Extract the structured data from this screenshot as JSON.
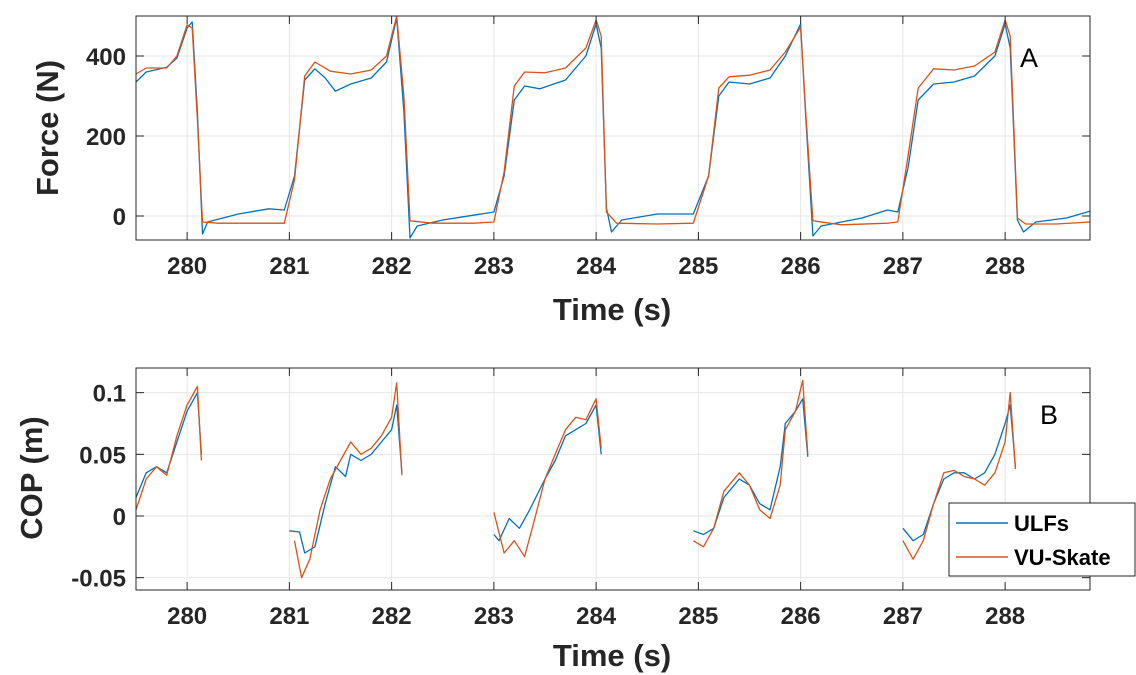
{
  "chart_data": [
    {
      "type": "line",
      "panel_label": "A",
      "title": "",
      "xlabel": "Time (s)",
      "ylabel": "Force (N)",
      "xlim": [
        279.5,
        288.83
      ],
      "ylim": [
        -60,
        500
      ],
      "xticks": [
        280,
        281,
        282,
        283,
        284,
        285,
        286,
        287,
        288
      ],
      "yticks": [
        0,
        200,
        400
      ],
      "grid": true,
      "series": [
        {
          "name": "ULFs",
          "color": "#0072BD",
          "points": [
            [
              279.5,
              335
            ],
            [
              279.6,
              360
            ],
            [
              279.8,
              372
            ],
            [
              279.9,
              395
            ],
            [
              280.0,
              470
            ],
            [
              280.05,
              485
            ],
            [
              280.1,
              260
            ],
            [
              280.15,
              -45
            ],
            [
              280.2,
              -15
            ],
            [
              280.5,
              5
            ],
            [
              280.8,
              18
            ],
            [
              280.95,
              15
            ],
            [
              281.05,
              100
            ],
            [
              281.15,
              340
            ],
            [
              281.25,
              368
            ],
            [
              281.35,
              345
            ],
            [
              281.45,
              312
            ],
            [
              281.6,
              330
            ],
            [
              281.8,
              345
            ],
            [
              281.95,
              385
            ],
            [
              282.05,
              495
            ],
            [
              282.12,
              260
            ],
            [
              282.18,
              -55
            ],
            [
              282.25,
              -25
            ],
            [
              282.5,
              -10
            ],
            [
              282.8,
              2
            ],
            [
              283.0,
              10
            ],
            [
              283.1,
              100
            ],
            [
              283.2,
              290
            ],
            [
              283.3,
              325
            ],
            [
              283.45,
              318
            ],
            [
              283.7,
              340
            ],
            [
              283.9,
              400
            ],
            [
              284.0,
              480
            ],
            [
              284.05,
              420
            ],
            [
              284.1,
              20
            ],
            [
              284.15,
              -40
            ],
            [
              284.25,
              -10
            ],
            [
              284.6,
              5
            ],
            [
              284.95,
              5
            ],
            [
              285.1,
              100
            ],
            [
              285.2,
              300
            ],
            [
              285.3,
              335
            ],
            [
              285.5,
              330
            ],
            [
              285.7,
              345
            ],
            [
              285.85,
              400
            ],
            [
              286.0,
              480
            ],
            [
              286.05,
              250
            ],
            [
              286.12,
              -50
            ],
            [
              286.2,
              -25
            ],
            [
              286.6,
              -5
            ],
            [
              286.85,
              15
            ],
            [
              286.95,
              10
            ],
            [
              287.05,
              120
            ],
            [
              287.15,
              290
            ],
            [
              287.3,
              330
            ],
            [
              287.5,
              335
            ],
            [
              287.7,
              350
            ],
            [
              287.9,
              400
            ],
            [
              288.0,
              480
            ],
            [
              288.05,
              420
            ],
            [
              288.12,
              -10
            ],
            [
              288.18,
              -40
            ],
            [
              288.3,
              -15
            ],
            [
              288.6,
              -5
            ],
            [
              288.83,
              12
            ]
          ]
        },
        {
          "name": "VU-Skate",
          "color": "#D95319",
          "points": [
            [
              279.5,
              355
            ],
            [
              279.6,
              370
            ],
            [
              279.8,
              370
            ],
            [
              279.9,
              400
            ],
            [
              280.0,
              478
            ],
            [
              280.05,
              470
            ],
            [
              280.1,
              240
            ],
            [
              280.15,
              -15
            ],
            [
              280.3,
              -18
            ],
            [
              280.7,
              -18
            ],
            [
              280.95,
              -18
            ],
            [
              281.05,
              90
            ],
            [
              281.15,
              350
            ],
            [
              281.25,
              385
            ],
            [
              281.4,
              362
            ],
            [
              281.6,
              355
            ],
            [
              281.8,
              365
            ],
            [
              281.95,
              400
            ],
            [
              282.05,
              500
            ],
            [
              282.12,
              300
            ],
            [
              282.18,
              -12
            ],
            [
              282.4,
              -18
            ],
            [
              282.8,
              -18
            ],
            [
              283.0,
              -15
            ],
            [
              283.1,
              110
            ],
            [
              283.2,
              325
            ],
            [
              283.3,
              360
            ],
            [
              283.5,
              358
            ],
            [
              283.7,
              370
            ],
            [
              283.9,
              420
            ],
            [
              284.0,
              490
            ],
            [
              284.05,
              450
            ],
            [
              284.1,
              10
            ],
            [
              284.2,
              -18
            ],
            [
              284.6,
              -20
            ],
            [
              284.95,
              -18
            ],
            [
              285.1,
              100
            ],
            [
              285.2,
              320
            ],
            [
              285.3,
              348
            ],
            [
              285.5,
              352
            ],
            [
              285.7,
              365
            ],
            [
              285.85,
              410
            ],
            [
              286.0,
              472
            ],
            [
              286.05,
              260
            ],
            [
              286.12,
              -12
            ],
            [
              286.4,
              -22
            ],
            [
              286.85,
              -18
            ],
            [
              286.95,
              -15
            ],
            [
              287.05,
              150
            ],
            [
              287.15,
              320
            ],
            [
              287.3,
              368
            ],
            [
              287.5,
              365
            ],
            [
              287.7,
              375
            ],
            [
              287.9,
              410
            ],
            [
              288.0,
              490
            ],
            [
              288.05,
              450
            ],
            [
              288.12,
              -5
            ],
            [
              288.2,
              -20
            ],
            [
              288.5,
              -20
            ],
            [
              288.83,
              -15
            ]
          ]
        }
      ]
    },
    {
      "type": "line",
      "panel_label": "B",
      "title": "",
      "xlabel": "Time (s)",
      "ylabel": "COP (m)",
      "xlim": [
        279.5,
        288.83
      ],
      "ylim": [
        -0.06,
        0.12
      ],
      "xticks": [
        280,
        281,
        282,
        283,
        284,
        285,
        286,
        287,
        288
      ],
      "yticks": [
        -0.05,
        0,
        0.05,
        0.1
      ],
      "ytick_labels": [
        "-0.05",
        "0",
        "0.05",
        "0.1"
      ],
      "grid": true,
      "legend": {
        "position": "right",
        "entries": [
          "ULFs",
          "VU-Skate"
        ]
      },
      "series": [
        {
          "name": "ULFs",
          "color": "#0072BD",
          "segments": [
            [
              [
                279.5,
                0.015
              ],
              [
                279.6,
                0.035
              ],
              [
                279.7,
                0.04
              ],
              [
                279.8,
                0.035
              ],
              [
                279.9,
                0.06
              ],
              [
                280.0,
                0.085
              ],
              [
                280.1,
                0.1
              ],
              [
                280.14,
                0.05
              ]
            ],
            [
              [
                281.0,
                -0.012
              ],
              [
                281.1,
                -0.013
              ],
              [
                281.15,
                -0.03
              ],
              [
                281.25,
                -0.025
              ],
              [
                281.35,
                0.01
              ],
              [
                281.45,
                0.04
              ],
              [
                281.55,
                0.032
              ],
              [
                281.6,
                0.05
              ],
              [
                281.7,
                0.045
              ],
              [
                281.8,
                0.05
              ],
              [
                281.9,
                0.06
              ],
              [
                282.0,
                0.07
              ],
              [
                282.05,
                0.09
              ],
              [
                282.1,
                0.035
              ]
            ],
            [
              [
                283.0,
                -0.015
              ],
              [
                283.05,
                -0.02
              ],
              [
                283.15,
                -0.002
              ],
              [
                283.25,
                -0.01
              ],
              [
                283.35,
                0.005
              ],
              [
                283.5,
                0.03
              ],
              [
                283.6,
                0.045
              ],
              [
                283.7,
                0.065
              ],
              [
                283.8,
                0.07
              ],
              [
                283.9,
                0.075
              ],
              [
                284.0,
                0.09
              ],
              [
                284.05,
                0.05
              ]
            ],
            [
              [
                284.95,
                -0.012
              ],
              [
                285.05,
                -0.015
              ],
              [
                285.15,
                -0.01
              ],
              [
                285.25,
                0.015
              ],
              [
                285.4,
                0.03
              ],
              [
                285.5,
                0.025
              ],
              [
                285.6,
                0.01
              ],
              [
                285.7,
                0.005
              ],
              [
                285.8,
                0.04
              ],
              [
                285.85,
                0.075
              ],
              [
                285.95,
                0.085
              ],
              [
                286.02,
                0.095
              ],
              [
                286.07,
                0.048
              ]
            ],
            [
              [
                287.0,
                -0.01
              ],
              [
                287.1,
                -0.02
              ],
              [
                287.2,
                -0.015
              ],
              [
                287.3,
                0.01
              ],
              [
                287.4,
                0.03
              ],
              [
                287.5,
                0.035
              ],
              [
                287.6,
                0.035
              ],
              [
                287.7,
                0.03
              ],
              [
                287.8,
                0.035
              ],
              [
                287.9,
                0.05
              ],
              [
                288.0,
                0.075
              ],
              [
                288.05,
                0.09
              ],
              [
                288.1,
                0.04
              ]
            ]
          ]
        },
        {
          "name": "VU-Skate",
          "color": "#D95319",
          "segments": [
            [
              [
                279.5,
                0.005
              ],
              [
                279.6,
                0.03
              ],
              [
                279.7,
                0.04
              ],
              [
                279.8,
                0.033
              ],
              [
                279.9,
                0.065
              ],
              [
                280.0,
                0.09
              ],
              [
                280.1,
                0.105
              ],
              [
                280.14,
                0.045
              ]
            ],
            [
              [
                281.05,
                -0.02
              ],
              [
                281.12,
                -0.05
              ],
              [
                281.2,
                -0.035
              ],
              [
                281.3,
                0.005
              ],
              [
                281.4,
                0.03
              ],
              [
                281.5,
                0.045
              ],
              [
                281.6,
                0.06
              ],
              [
                281.7,
                0.05
              ],
              [
                281.8,
                0.055
              ],
              [
                281.9,
                0.065
              ],
              [
                282.0,
                0.08
              ],
              [
                282.05,
                0.108
              ],
              [
                282.1,
                0.033
              ]
            ],
            [
              [
                283.0,
                0.003
              ],
              [
                283.1,
                -0.03
              ],
              [
                283.2,
                -0.02
              ],
              [
                283.3,
                -0.033
              ],
              [
                283.4,
                -0.002
              ],
              [
                283.5,
                0.03
              ],
              [
                283.6,
                0.05
              ],
              [
                283.7,
                0.07
              ],
              [
                283.8,
                0.08
              ],
              [
                283.9,
                0.078
              ],
              [
                284.0,
                0.095
              ],
              [
                284.05,
                0.055
              ]
            ],
            [
              [
                284.95,
                -0.02
              ],
              [
                285.05,
                -0.025
              ],
              [
                285.15,
                -0.01
              ],
              [
                285.25,
                0.02
              ],
              [
                285.4,
                0.035
              ],
              [
                285.5,
                0.025
              ],
              [
                285.6,
                0.005
              ],
              [
                285.7,
                -0.002
              ],
              [
                285.8,
                0.025
              ],
              [
                285.85,
                0.07
              ],
              [
                285.95,
                0.085
              ],
              [
                286.02,
                0.11
              ],
              [
                286.07,
                0.05
              ]
            ],
            [
              [
                287.0,
                -0.02
              ],
              [
                287.1,
                -0.035
              ],
              [
                287.2,
                -0.02
              ],
              [
                287.3,
                0.01
              ],
              [
                287.4,
                0.035
              ],
              [
                287.5,
                0.037
              ],
              [
                287.6,
                0.032
              ],
              [
                287.7,
                0.03
              ],
              [
                287.8,
                0.025
              ],
              [
                287.9,
                0.035
              ],
              [
                288.0,
                0.06
              ],
              [
                288.05,
                0.1
              ],
              [
                288.1,
                0.038
              ]
            ]
          ]
        }
      ]
    }
  ]
}
